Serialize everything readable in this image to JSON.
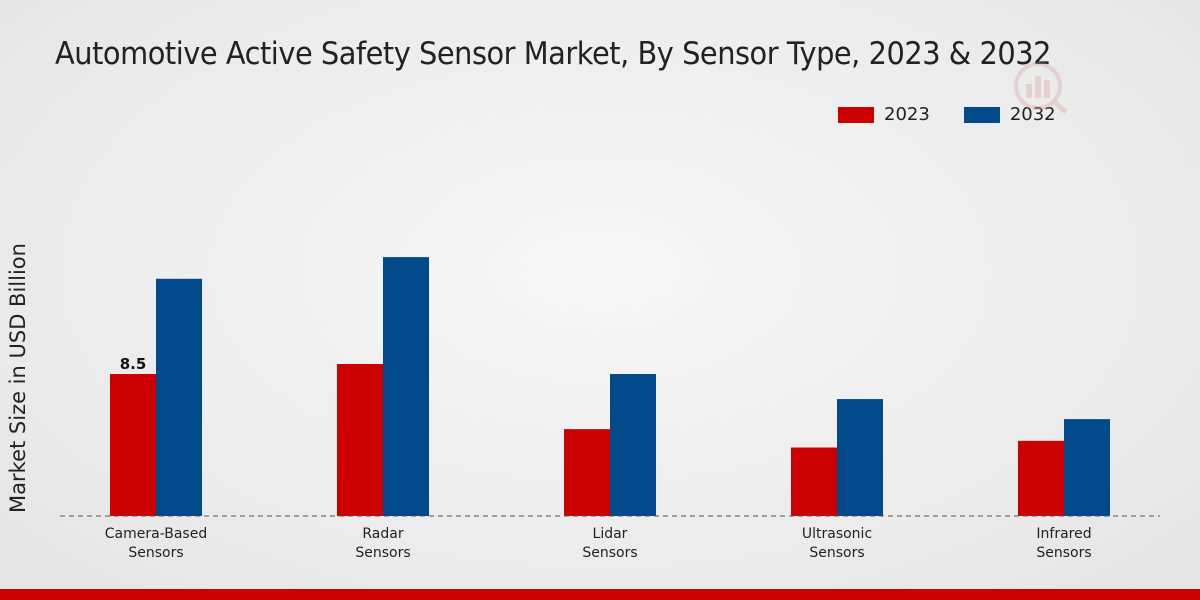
{
  "chart_data": {
    "type": "bar",
    "title": "Automotive Active Safety Sensor Market, By Sensor Type, 2023 & 2032",
    "xlabel": "",
    "ylabel": "Market Size in USD Billion",
    "categories": [
      [
        "Camera-Based",
        "Sensors"
      ],
      [
        "Radar",
        "Sensors"
      ],
      [
        "Lidar",
        "Sensors"
      ],
      [
        "Ultrasonic",
        "Sensors"
      ],
      [
        "Infrared",
        "Sensors"
      ]
    ],
    "series": [
      {
        "name": "2023",
        "color": "#cc0000",
        "values": [
          8.5,
          9.1,
          5.2,
          4.1,
          4.5
        ]
      },
      {
        "name": "2032",
        "color": "#004a8c",
        "values": [
          14.2,
          15.5,
          8.5,
          7.0,
          5.8
        ]
      }
    ],
    "data_labels": [
      {
        "series": 0,
        "index": 0,
        "text": "8.5"
      }
    ],
    "ylim": [
      0,
      27
    ],
    "grid": false,
    "legend_position": "top-right"
  },
  "colors": {
    "accent_bar": "#cc0000",
    "baseline": "#555555"
  },
  "icons": {
    "watermark": "bar-chart-magnifier-icon"
  }
}
